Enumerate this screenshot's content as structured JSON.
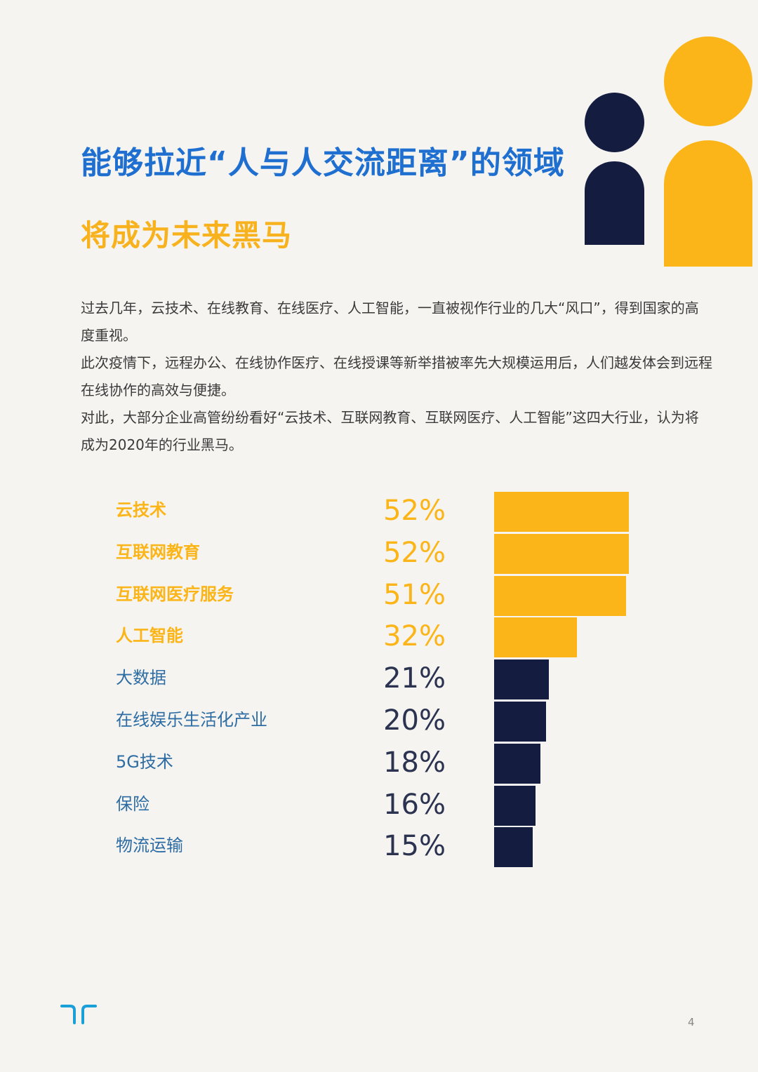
{
  "heading": {
    "line1": "能够拉近“人与人交流距离”的领域",
    "line2": "将成为未来黑马"
  },
  "intro": [
    "过去几年，云技术、在线教育、在线医疗、人工智能，一直被视作行业的几大“风口”，得到国家的高度重视。",
    "此次疫情下，远程办公、在线协作医疗、在线授课等新举措被率先大规模运用后，人们越发体会到远程在线协作的高效与便捷。",
    "对此，大部分企业高管纷纷看好“云技术、互联网教育、互联网医疗、人工智能”这四大行业，认为将成为2020年的行业黑马。"
  ],
  "colors": {
    "blue": "#1f6fd1",
    "yellow": "#fbb518",
    "navy": "#141c40",
    "label_blue": "#2e6da4",
    "pct_navy": "#2b3350",
    "background": "#f5f4f0"
  },
  "chart_data": {
    "type": "bar",
    "orientation": "horizontal",
    "categories": [
      "云技术",
      "互联网教育",
      "互联网医疗服务",
      "人工智能",
      "大数据",
      "在线娱乐生活化产业",
      "5G技术",
      "保险",
      "物流运输"
    ],
    "values": [
      52,
      52,
      51,
      32,
      21,
      20,
      18,
      16,
      15
    ],
    "value_labels": [
      "52%",
      "52%",
      "51%",
      "32%",
      "21%",
      "20%",
      "18%",
      "16%",
      "15%"
    ],
    "highlighted": [
      true,
      true,
      true,
      true,
      false,
      false,
      false,
      false,
      false
    ],
    "unit": "%",
    "xlim": [
      0,
      52
    ],
    "grid": false,
    "legend": "none"
  },
  "footer": {
    "logo_icon": "company-logo-icon",
    "page_number": "4"
  }
}
